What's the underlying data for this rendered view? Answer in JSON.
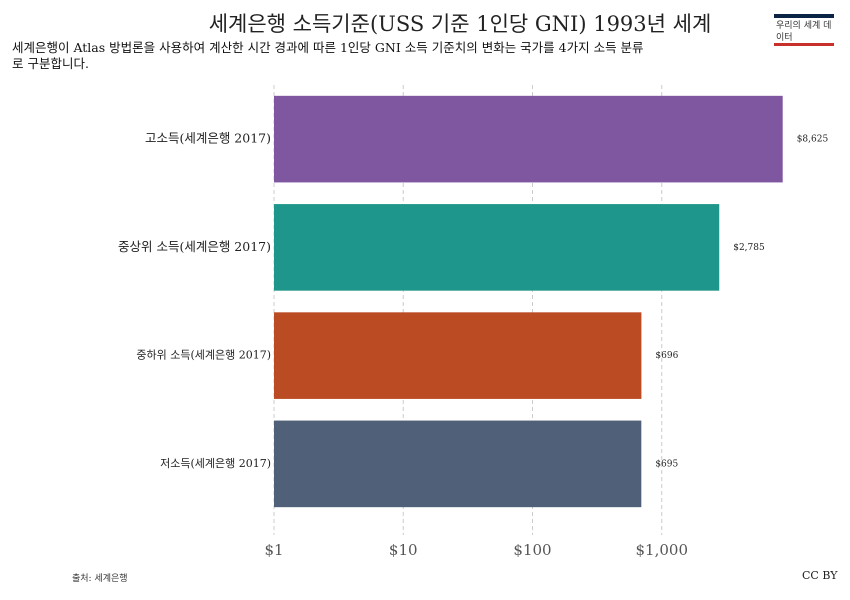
{
  "chart_data": {
    "type": "bar",
    "orientation": "horizontal",
    "title": "세계은행 소득기준(USS 기준 1인당 GNI) 1993년 세계",
    "subtitle": "세계은행이 Atlas 방법론을 사용하여 계산한 시간 경과에 따른 1인당 GNI 소득 기준치의 변화는 국가를 4가지 소득 분류로 구분합니다.",
    "logo": "우리의 세계 데이터",
    "source": "출처: 세계은행",
    "license": "CC BY",
    "categories": [
      "고소득(세계은행 2017)",
      "중상위 소득(세계은행 2017)",
      "중하위 소득(세계은행 2017)",
      "저소득(세계은행 2017)"
    ],
    "values": [
      8625,
      2785,
      696,
      695
    ],
    "value_labels": [
      "$8,625",
      "$2,785",
      "$696",
      "$695"
    ],
    "colors": [
      "#7f57a0",
      "#1f968b",
      "#bb4b23",
      "#4f6078"
    ],
    "xlim": [
      1,
      10000
    ],
    "xscale": "log",
    "xticks": [
      {
        "value": 1,
        "label": "$1"
      },
      {
        "value": 10,
        "label": "$10"
      },
      {
        "value": 100,
        "label": "$100"
      },
      {
        "value": 1000,
        "label": "$1,000"
      }
    ],
    "grid": true
  }
}
